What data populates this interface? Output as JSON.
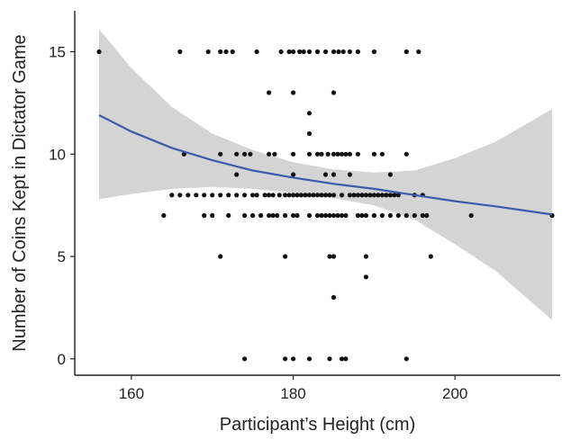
{
  "chart_data": {
    "type": "scatter",
    "title": "",
    "xlabel": "Participant’s Height (cm)",
    "ylabel": "Number of Coins Kept in Dictator Game",
    "xlim": [
      153,
      213
    ],
    "ylim": [
      -0.8,
      17
    ],
    "xticks": [
      160,
      180,
      200
    ],
    "yticks": [
      0,
      5,
      10,
      15
    ],
    "grid": false,
    "points": [
      [
        156,
        15
      ],
      [
        166,
        15
      ],
      [
        169.5,
        15
      ],
      [
        171,
        15
      ],
      [
        171.7,
        15
      ],
      [
        172.5,
        15
      ],
      [
        175.5,
        15
      ],
      [
        178.5,
        15
      ],
      [
        179.5,
        15
      ],
      [
        180,
        15
      ],
      [
        180.8,
        15
      ],
      [
        181.3,
        15
      ],
      [
        182,
        15
      ],
      [
        183,
        15
      ],
      [
        184,
        15
      ],
      [
        185,
        15
      ],
      [
        185.6,
        15
      ],
      [
        186.2,
        15
      ],
      [
        187,
        15
      ],
      [
        188,
        15
      ],
      [
        190,
        15
      ],
      [
        194,
        15
      ],
      [
        195.5,
        15
      ],
      [
        177,
        13
      ],
      [
        180,
        13
      ],
      [
        185,
        13
      ],
      [
        182,
        12
      ],
      [
        182,
        11
      ],
      [
        166.5,
        10
      ],
      [
        171,
        10
      ],
      [
        173,
        10
      ],
      [
        174,
        10
      ],
      [
        174.7,
        10
      ],
      [
        177,
        10
      ],
      [
        177.7,
        10
      ],
      [
        180,
        10
      ],
      [
        182,
        10
      ],
      [
        183,
        10
      ],
      [
        183.5,
        10
      ],
      [
        184.3,
        10
      ],
      [
        185,
        10
      ],
      [
        185.5,
        10
      ],
      [
        186,
        10
      ],
      [
        186.5,
        10
      ],
      [
        187,
        10
      ],
      [
        188,
        10
      ],
      [
        190,
        10
      ],
      [
        191,
        10
      ],
      [
        194,
        10
      ],
      [
        173,
        9
      ],
      [
        180,
        9
      ],
      [
        184,
        9
      ],
      [
        185,
        9
      ],
      [
        187,
        9
      ],
      [
        192,
        9
      ],
      [
        165,
        8
      ],
      [
        166,
        8
      ],
      [
        167,
        8
      ],
      [
        168,
        8
      ],
      [
        169,
        8
      ],
      [
        170,
        8
      ],
      [
        171,
        8
      ],
      [
        172,
        8
      ],
      [
        173,
        8
      ],
      [
        174,
        8
      ],
      [
        175,
        8
      ],
      [
        175.5,
        8
      ],
      [
        176.5,
        8
      ],
      [
        177,
        8
      ],
      [
        177.5,
        8
      ],
      [
        178.3,
        8
      ],
      [
        179,
        8
      ],
      [
        179.5,
        8
      ],
      [
        180,
        8
      ],
      [
        180.5,
        8
      ],
      [
        181,
        8
      ],
      [
        181.5,
        8
      ],
      [
        182,
        8
      ],
      [
        182.5,
        8
      ],
      [
        183,
        8
      ],
      [
        183.5,
        8
      ],
      [
        184,
        8
      ],
      [
        184.5,
        8
      ],
      [
        185,
        8
      ],
      [
        186,
        8
      ],
      [
        187,
        8
      ],
      [
        187.5,
        8
      ],
      [
        188,
        8
      ],
      [
        188.5,
        8
      ],
      [
        189,
        8
      ],
      [
        189.5,
        8
      ],
      [
        190,
        8
      ],
      [
        190.5,
        8
      ],
      [
        191,
        8
      ],
      [
        191.5,
        8
      ],
      [
        192,
        8
      ],
      [
        192.5,
        8
      ],
      [
        193,
        8
      ],
      [
        195,
        8
      ],
      [
        196,
        8
      ],
      [
        164,
        7
      ],
      [
        169,
        7
      ],
      [
        170,
        7
      ],
      [
        172,
        7
      ],
      [
        174,
        7
      ],
      [
        175,
        7
      ],
      [
        176,
        7
      ],
      [
        177,
        7
      ],
      [
        177.5,
        7
      ],
      [
        178,
        7
      ],
      [
        179,
        7
      ],
      [
        180,
        7
      ],
      [
        180.5,
        7
      ],
      [
        182,
        7
      ],
      [
        183,
        7
      ],
      [
        183.5,
        7
      ],
      [
        184,
        7
      ],
      [
        184.5,
        7
      ],
      [
        185,
        7
      ],
      [
        185.5,
        7
      ],
      [
        186,
        7
      ],
      [
        186.5,
        7
      ],
      [
        188,
        7
      ],
      [
        188.5,
        7
      ],
      [
        189,
        7
      ],
      [
        190,
        7
      ],
      [
        191,
        7
      ],
      [
        192,
        7
      ],
      [
        193,
        7
      ],
      [
        194,
        7
      ],
      [
        195,
        7
      ],
      [
        196,
        7
      ],
      [
        196.5,
        7
      ],
      [
        202,
        7
      ],
      [
        212,
        7
      ],
      [
        171,
        5
      ],
      [
        179,
        5
      ],
      [
        184.5,
        5
      ],
      [
        185,
        5
      ],
      [
        189,
        5
      ],
      [
        197,
        5
      ],
      [
        189,
        4
      ],
      [
        185,
        3
      ],
      [
        174,
        0
      ],
      [
        179,
        0
      ],
      [
        180,
        0
      ],
      [
        182,
        0
      ],
      [
        184.5,
        0
      ],
      [
        186,
        0
      ],
      [
        186.5,
        0
      ],
      [
        194,
        0
      ]
    ],
    "fit": {
      "x": [
        156,
        160,
        165,
        170,
        175,
        180,
        185,
        190,
        195,
        200,
        205,
        212
      ],
      "y": [
        11.9,
        11.1,
        10.3,
        9.7,
        9.2,
        8.85,
        8.55,
        8.3,
        8.0,
        7.7,
        7.45,
        7.05
      ],
      "ci_lower": [
        7.8,
        8.05,
        8.3,
        8.4,
        8.3,
        8.1,
        7.85,
        7.5,
        6.8,
        5.6,
        4.3,
        1.9
      ],
      "ci_upper": [
        16.1,
        14.2,
        12.3,
        11.0,
        10.2,
        9.6,
        9.25,
        9.1,
        9.2,
        9.8,
        10.6,
        12.2
      ]
    },
    "colors": {
      "points": "#111111",
      "fit_line": "#3b5bab",
      "ci_band": "#d4d4d4",
      "axis": "#222222"
    }
  }
}
